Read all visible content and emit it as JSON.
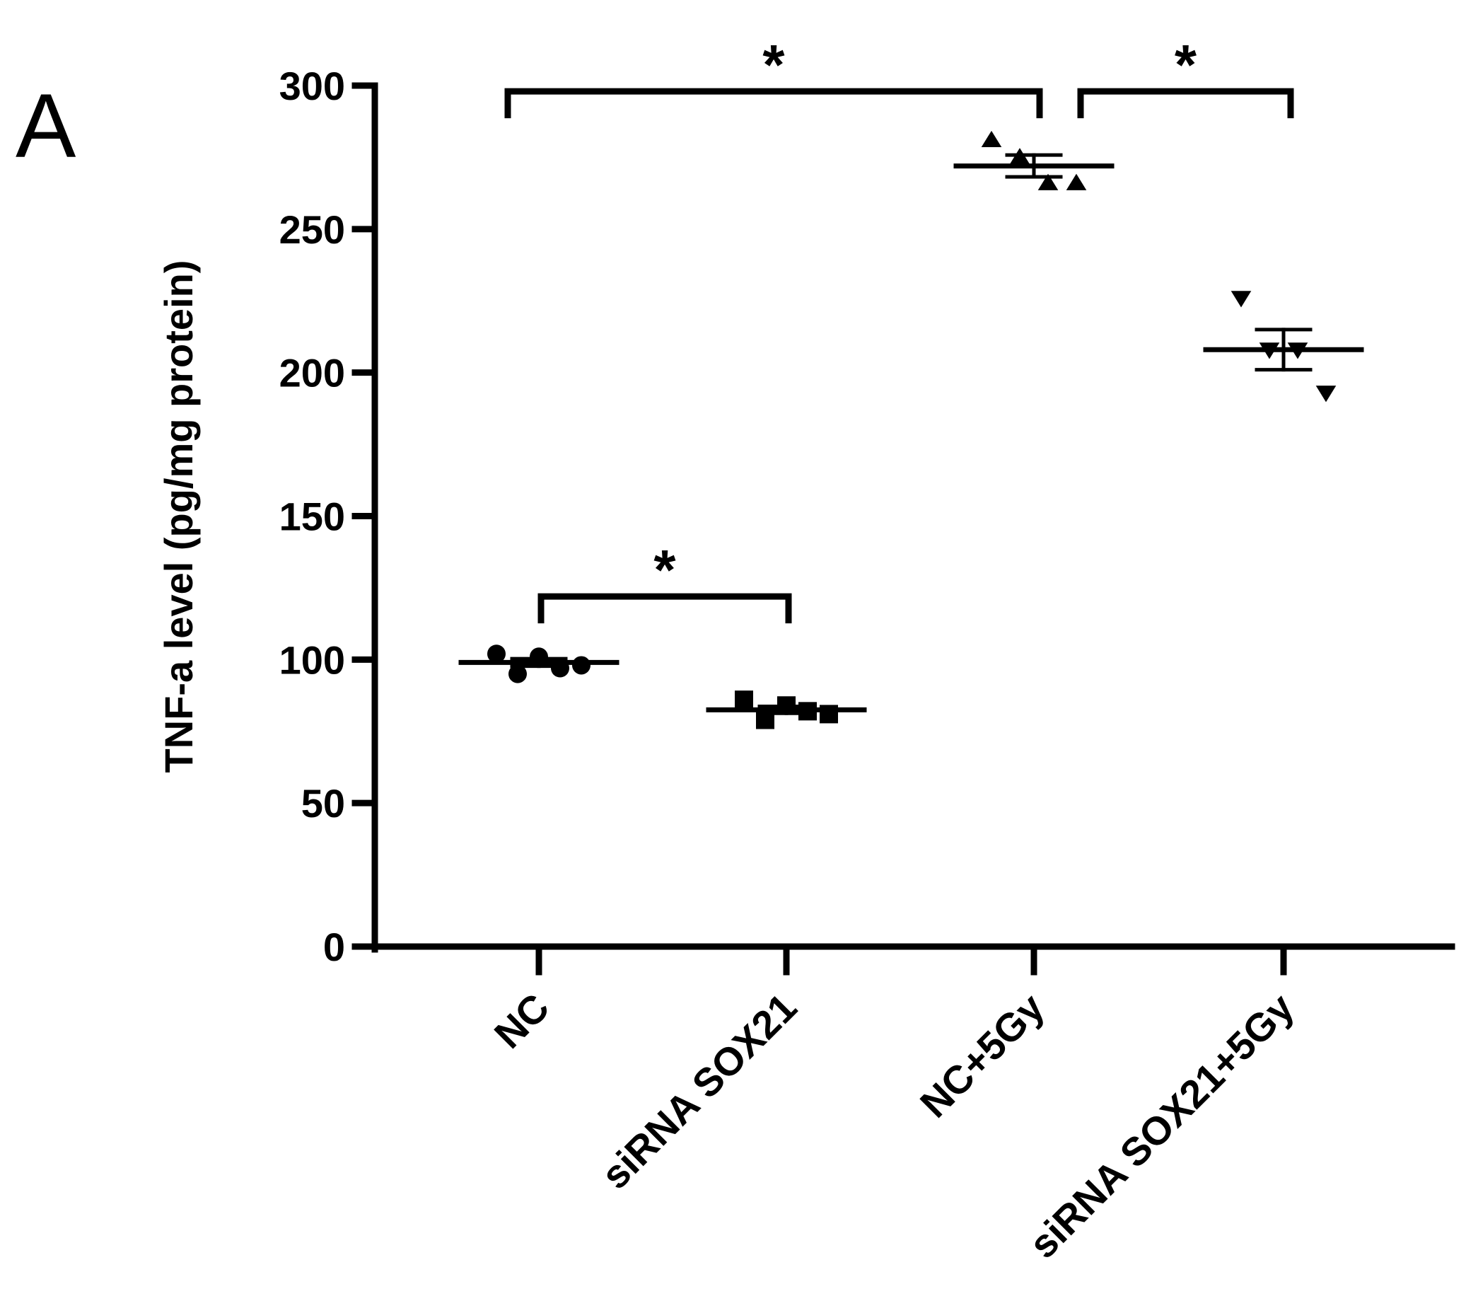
{
  "panel_label": "A",
  "chart_data": {
    "type": "scatter",
    "title": "",
    "xlabel": "",
    "ylabel": "TNF-a  level (pg/mg protein)",
    "ylim": [
      0,
      300
    ],
    "yticks": [
      0,
      50,
      100,
      150,
      200,
      250,
      300
    ],
    "ytick_labels": [
      "0",
      "50",
      "100",
      "150",
      "200",
      "250",
      "300"
    ],
    "categories": [
      "NC",
      "siRNA SOX21",
      "NC+5Gy",
      "siRNA SOX21+5Gy"
    ],
    "series": [
      {
        "name": "NC",
        "marker": "circle",
        "points": [
          102,
          95,
          101,
          97,
          98
        ],
        "mean": 99,
        "sem": 1.3
      },
      {
        "name": "siRNA SOX21",
        "marker": "square",
        "points": [
          86,
          79,
          84,
          82,
          81
        ],
        "mean": 82.5,
        "sem": 1.2
      },
      {
        "name": "NC+5Gy",
        "marker": "triangle-up",
        "points": [
          281,
          275,
          266,
          266
        ],
        "mean": 272,
        "sem": 3.8
      },
      {
        "name": "siRNA SOX21+5Gy",
        "marker": "triangle-down",
        "points": [
          226,
          208,
          208,
          193
        ],
        "mean": 208,
        "sem": 7
      }
    ],
    "significance": [
      {
        "from": "NC",
        "to": "siRNA SOX21",
        "label": "*",
        "level": 122
      },
      {
        "from": "NC",
        "to": "NC+5Gy",
        "label": "*",
        "level": 298
      },
      {
        "from": "NC+5Gy",
        "to": "siRNA SOX21+5Gy",
        "label": "*",
        "level": 298
      }
    ]
  }
}
